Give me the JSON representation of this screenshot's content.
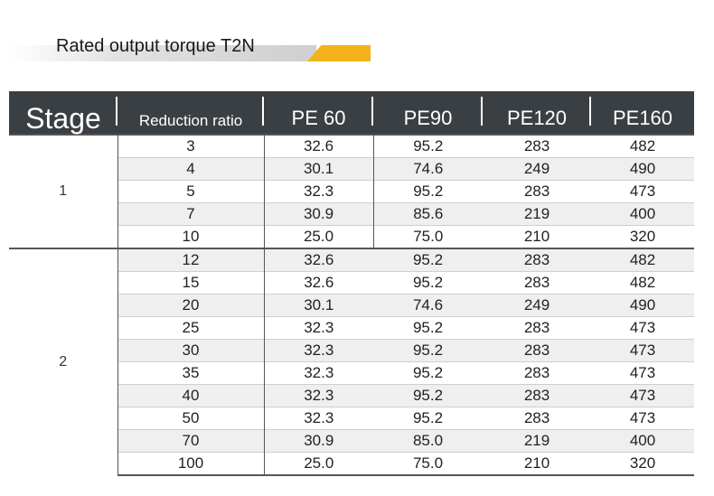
{
  "title": "Rated output torque T2N",
  "colors": {
    "header_bg": "#3a3f43",
    "accent": "#f2b21b",
    "row_shade": "#efefef"
  },
  "table": {
    "headers": [
      "Stage",
      "Reduction ratio",
      "PE 60",
      "PE90",
      "PE120",
      "PE160"
    ],
    "groups": [
      {
        "stage": "1",
        "rows": [
          [
            "3",
            "32.6",
            "95.2",
            "283",
            "482"
          ],
          [
            "4",
            "30.1",
            "74.6",
            "249",
            "490"
          ],
          [
            "5",
            "32.3",
            "95.2",
            "283",
            "473"
          ],
          [
            "7",
            "30.9",
            "85.6",
            "219",
            "400"
          ],
          [
            "10",
            "25.0",
            "75.0",
            "210",
            "320"
          ]
        ]
      },
      {
        "stage": "2",
        "rows": [
          [
            "12",
            "32.6",
            "95.2",
            "283",
            "482"
          ],
          [
            "15",
            "32.6",
            "95.2",
            "283",
            "482"
          ],
          [
            "20",
            "30.1",
            "74.6",
            "249",
            "490"
          ],
          [
            "25",
            "32.3",
            "95.2",
            "283",
            "473"
          ],
          [
            "30",
            "32.3",
            "95.2",
            "283",
            "473"
          ],
          [
            "35",
            "32.3",
            "95.2",
            "283",
            "473"
          ],
          [
            "40",
            "32.3",
            "95.2",
            "283",
            "473"
          ],
          [
            "50",
            "32.3",
            "95.2",
            "283",
            "473"
          ],
          [
            "70",
            "30.9",
            "85.0",
            "219",
            "400"
          ],
          [
            "100",
            "25.0",
            "75.0",
            "210",
            "320"
          ]
        ]
      }
    ]
  }
}
